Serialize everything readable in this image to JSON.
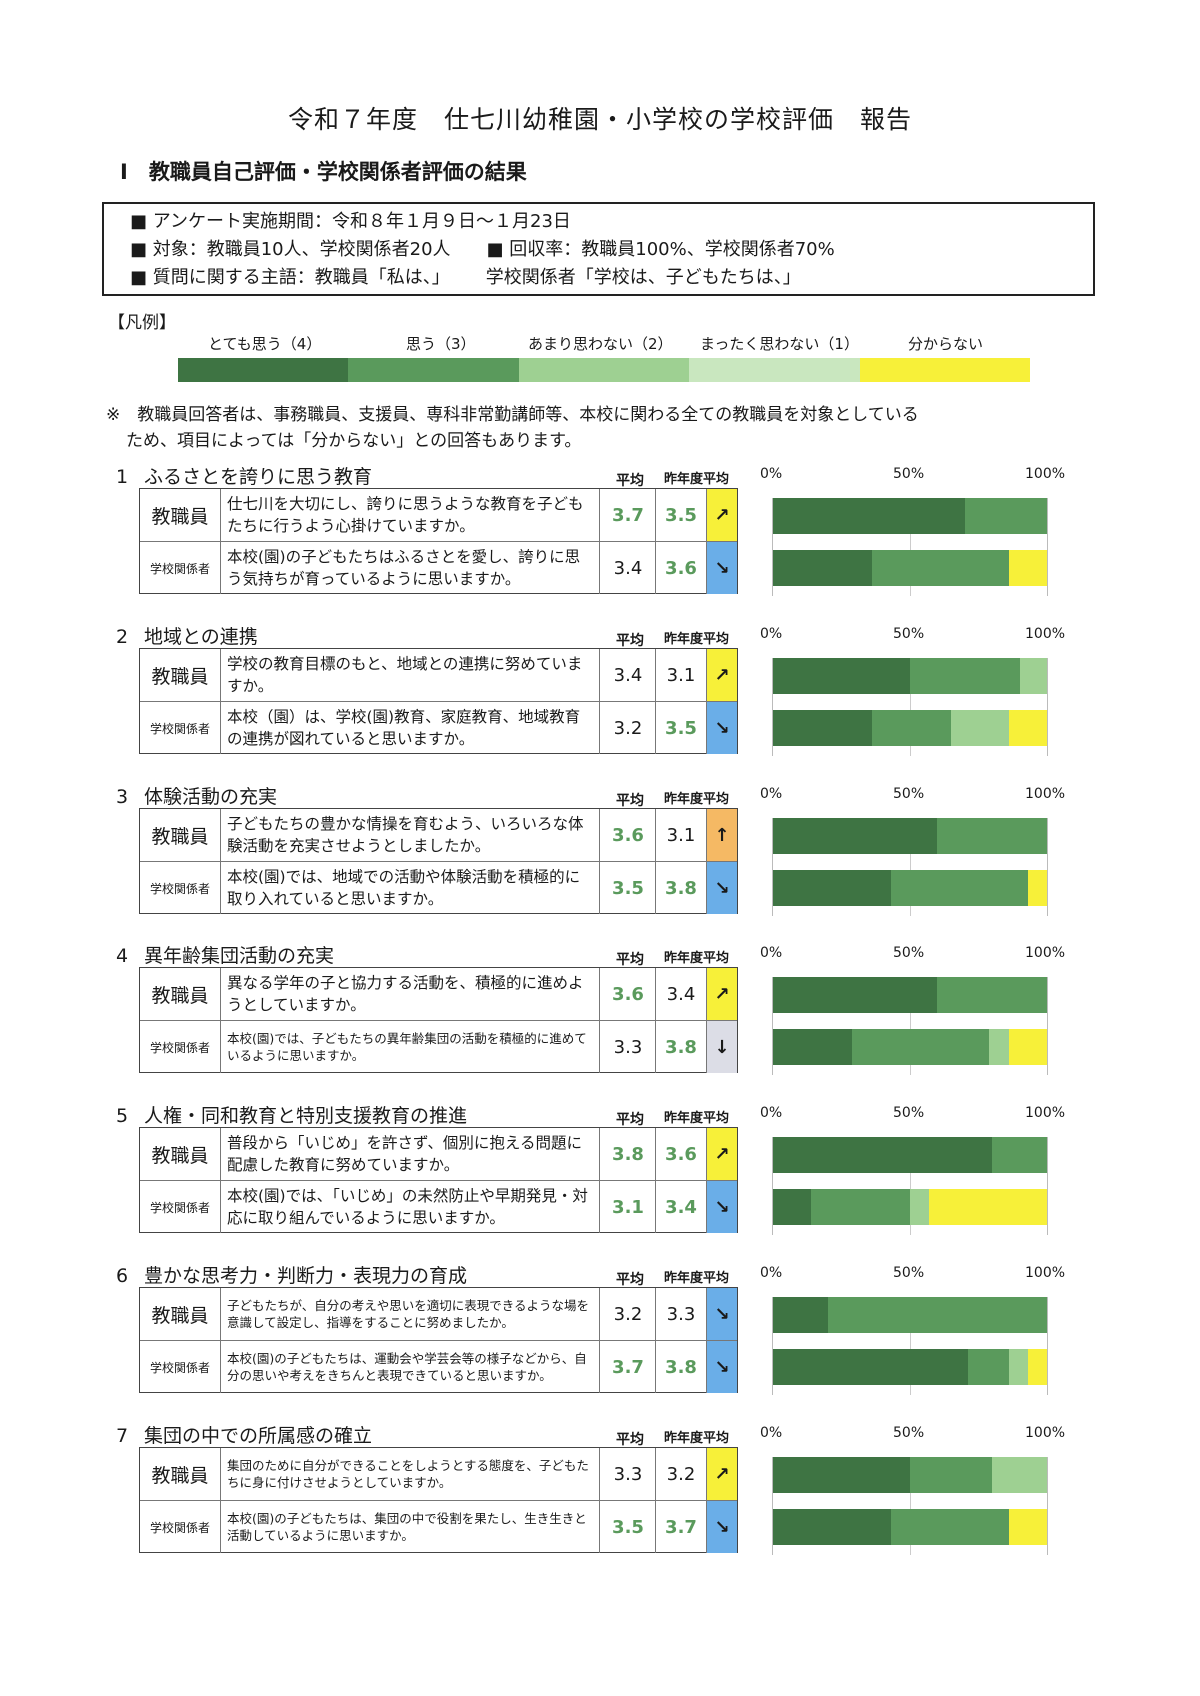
{
  "title": "令和７年度　仕七川幼稚園・小学校の学校評価　報告",
  "section_heading": "Ⅰ　教職員自己評価・学校関係者評価の結果",
  "info": {
    "period": "■ アンケート実施期間：令和８年１月９日～１月23日",
    "target": "■ 対象：教職員10人、学校関係者20人",
    "rate": "■ 回収率：教職員100%、学校関係者70%",
    "subject_staff": "■ 質問に関する主語：教職員「私は、」",
    "subject_rel": "学校関係者「学校は、子どもたちは、」"
  },
  "legend": {
    "title": "【凡例】",
    "items": [
      {
        "label": "とても思う（4）",
        "color": "#3e7443"
      },
      {
        "label": "思う（3）",
        "color": "#5a9a5c"
      },
      {
        "label": "あまり思わない（2）",
        "color": "#9ed092"
      },
      {
        "label": "まったく思わない（1）",
        "color": "#c9e7bf"
      },
      {
        "label": "分からない",
        "color": "#f7f039"
      }
    ]
  },
  "note": {
    "line1": "※　教職員回答者は、事務職員、支援員、専科非常勤講師等、本校に関わる全ての教職員を対象としている",
    "line2": "ため、項目によっては「分からない」との回答もあります。"
  },
  "headers": {
    "avg": "平均",
    "prev": "昨年度平均",
    "axis": [
      "0%",
      "50%",
      "100%"
    ]
  },
  "arrow_colors": {
    "up_right": "#f7f039",
    "down_right": "#6aaee8",
    "up": "#f5b964",
    "down": "#dcdde6"
  },
  "items": [
    {
      "num": "1",
      "title": "ふるさとを誇りに思う教育",
      "rows": [
        {
          "who": "教職員",
          "question": "仕七川を大切にし、誇りに思うような教育を子どもたちに行うよう心掛けていますか。",
          "avg": "3.7",
          "prev": "3.5",
          "arrow": "↗",
          "arrow_type": "up_right",
          "avg_hl": true,
          "prev_hl": true,
          "dist": [
            0.7,
            0.3,
            0,
            0,
            0
          ]
        },
        {
          "who": "学校関係者",
          "question": "本校(園)の子どもたちはふるさとを愛し、誇りに思う気持ちが育っているように思いますか。",
          "avg": "3.4",
          "prev": "3.6",
          "arrow": "↘",
          "arrow_type": "down_right",
          "avg_hl": false,
          "prev_hl": true,
          "dist": [
            0.36,
            0.5,
            0,
            0,
            0.14
          ]
        }
      ]
    },
    {
      "num": "2",
      "title": "地域との連携",
      "rows": [
        {
          "who": "教職員",
          "question": "学校の教育目標のもと、地域との連携に努めていますか。",
          "avg": "3.4",
          "prev": "3.1",
          "arrow": "↗",
          "arrow_type": "up_right",
          "avg_hl": false,
          "prev_hl": false,
          "dist": [
            0.5,
            0.4,
            0.1,
            0,
            0
          ]
        },
        {
          "who": "学校関係者",
          "question": "本校（園）は、学校(園)教育、家庭教育、地域教育の連携が図れていると思いますか。",
          "avg": "3.2",
          "prev": "3.5",
          "arrow": "↘",
          "arrow_type": "down_right",
          "avg_hl": false,
          "prev_hl": true,
          "dist": [
            0.36,
            0.29,
            0.21,
            0,
            0.14
          ]
        }
      ]
    },
    {
      "num": "3",
      "title": "体験活動の充実",
      "rows": [
        {
          "who": "教職員",
          "question": "子どもたちの豊かな情操を育むよう、いろいろな体験活動を充実させようとしましたか。",
          "avg": "3.6",
          "prev": "3.1",
          "arrow": "↑",
          "arrow_type": "up",
          "avg_hl": true,
          "prev_hl": false,
          "dist": [
            0.6,
            0.4,
            0,
            0,
            0
          ]
        },
        {
          "who": "学校関係者",
          "question": "本校(園)では、地域での活動や体験活動を積極的に取り入れていると思いますか。",
          "avg": "3.5",
          "prev": "3.8",
          "arrow": "↘",
          "arrow_type": "down_right",
          "avg_hl": true,
          "prev_hl": true,
          "dist": [
            0.43,
            0.5,
            0,
            0,
            0.07
          ]
        }
      ]
    },
    {
      "num": "4",
      "title": "異年齢集団活動の充実",
      "rows": [
        {
          "who": "教職員",
          "question": "異なる学年の子と協力する活動を、積極的に進めようとしていますか。",
          "avg": "3.6",
          "prev": "3.4",
          "arrow": "↗",
          "arrow_type": "up_right",
          "avg_hl": true,
          "prev_hl": false,
          "dist": [
            0.6,
            0.4,
            0,
            0,
            0
          ]
        },
        {
          "who": "学校関係者",
          "question": "本校(園)では、子どもたちの異年齢集団の活動を積極的に進めているように思いますか。",
          "small": true,
          "avg": "3.3",
          "prev": "3.8",
          "arrow": "↓",
          "arrow_type": "down",
          "avg_hl": false,
          "prev_hl": true,
          "dist": [
            0.29,
            0.5,
            0.07,
            0,
            0.14
          ]
        }
      ]
    },
    {
      "num": "5",
      "title": "人権・同和教育と特別支援教育の推進",
      "rows": [
        {
          "who": "教職員",
          "question": "普段から「いじめ」を許さず、個別に抱える問題に配慮した教育に努めていますか。",
          "avg": "3.8",
          "prev": "3.6",
          "arrow": "↗",
          "arrow_type": "up_right",
          "avg_hl": true,
          "prev_hl": true,
          "dist": [
            0.8,
            0.2,
            0,
            0,
            0
          ]
        },
        {
          "who": "学校関係者",
          "question": "本校(園)では、「いじめ」の未然防止や早期発見・対応に取り組んでいるように思いますか。",
          "avg": "3.1",
          "prev": "3.4",
          "arrow": "↘",
          "arrow_type": "down_right",
          "avg_hl": true,
          "prev_hl": true,
          "dist": [
            0.14,
            0.36,
            0.07,
            0,
            0.43
          ]
        }
      ]
    },
    {
      "num": "6",
      "title": "豊かな思考力・判断力・表現力の育成",
      "rows": [
        {
          "who": "教職員",
          "question": "子どもたちが、自分の考えや思いを適切に表現できるような場を意識して設定し、指導をすることに努めましたか。",
          "small": true,
          "avg": "3.2",
          "prev": "3.3",
          "arrow": "↘",
          "arrow_type": "down_right",
          "avg_hl": false,
          "prev_hl": false,
          "dist": [
            0.2,
            0.8,
            0,
            0,
            0
          ]
        },
        {
          "who": "学校関係者",
          "question": "本校(園)の子どもたちは、運動会や学芸会等の様子などから、自分の思いや考えをきちんと表現できていると思いますか。",
          "small": true,
          "avg": "3.7",
          "prev": "3.8",
          "arrow": "↘",
          "arrow_type": "down_right",
          "avg_hl": true,
          "prev_hl": true,
          "dist": [
            0.71,
            0.15,
            0.07,
            0,
            0.07
          ]
        }
      ]
    },
    {
      "num": "7",
      "title": "集団の中での所属感の確立",
      "rows": [
        {
          "who": "教職員",
          "question": "集団のために自分ができることをしようとする態度を、子どもたちに身に付けさせようとしていますか。",
          "small": true,
          "avg": "3.3",
          "prev": "3.2",
          "arrow": "↗",
          "arrow_type": "up_right",
          "avg_hl": false,
          "prev_hl": false,
          "dist": [
            0.5,
            0.3,
            0.2,
            0,
            0
          ]
        },
        {
          "who": "学校関係者",
          "question": "本校(園)の子どもたちは、集団の中で役割を果たし、生き生きと活動しているように思いますか。",
          "small": true,
          "avg": "3.5",
          "prev": "3.7",
          "arrow": "↘",
          "arrow_type": "down_right",
          "avg_hl": true,
          "prev_hl": true,
          "dist": [
            0.43,
            0.43,
            0,
            0,
            0.14
          ]
        }
      ]
    }
  ]
}
